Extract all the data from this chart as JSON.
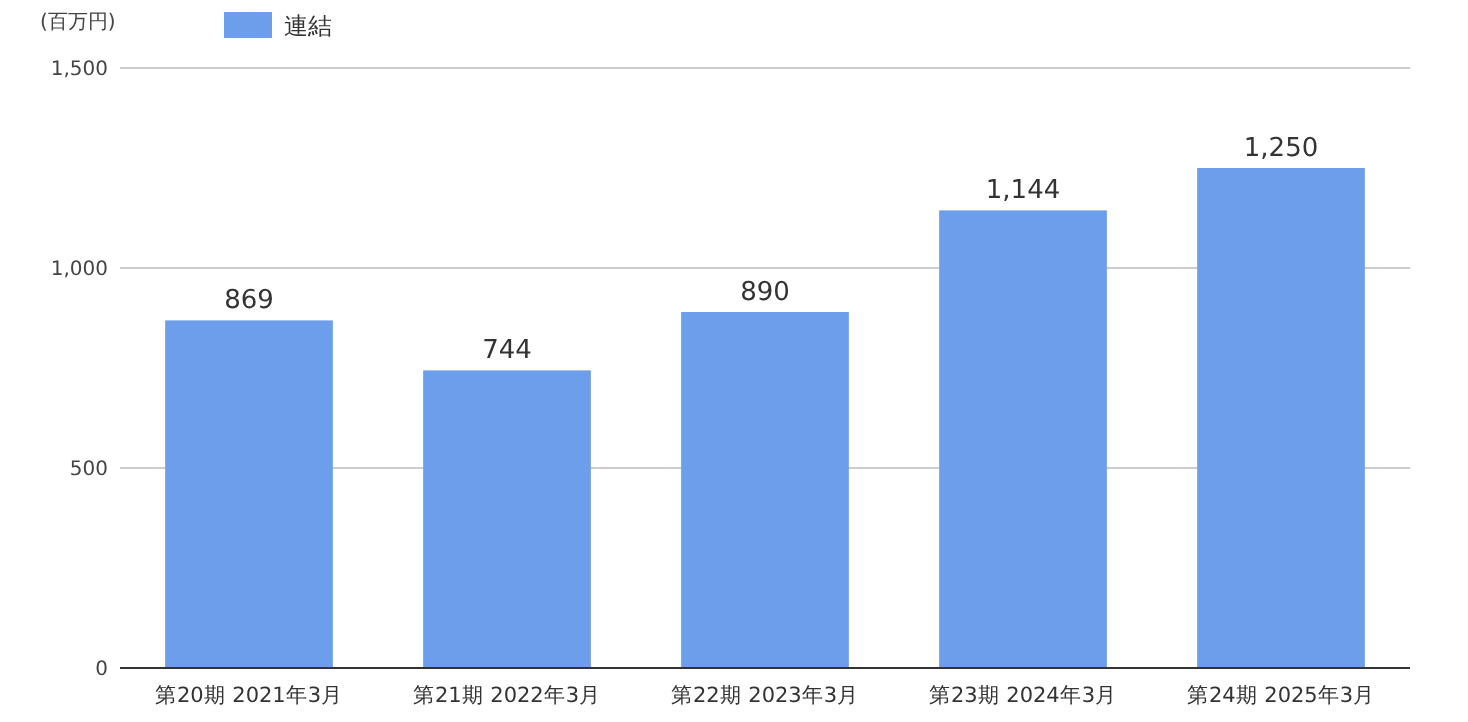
{
  "chart_data": {
    "type": "bar",
    "ylabel": "(百万円)",
    "categories": [
      "第20期 2021年3月",
      "第21期 2022年3月",
      "第22期 2023年3月",
      "第23期 2024年3月",
      "第24期 2025年3月"
    ],
    "series": [
      {
        "name": "連結",
        "color": "#6d9eeb",
        "values": [
          869,
          744,
          890,
          1144,
          1250
        ],
        "value_labels": [
          "869",
          "744",
          "890",
          "1,144",
          "1,250"
        ]
      }
    ],
    "ylim": [
      0,
      1500
    ],
    "yticks": [
      0,
      {
        "value": 500,
        "label": "500"
      },
      {
        "value": 1000,
        "label": "1,000"
      },
      {
        "value": 1500,
        "label": "1,500"
      }
    ],
    "grid": "y",
    "legend": "top left"
  }
}
